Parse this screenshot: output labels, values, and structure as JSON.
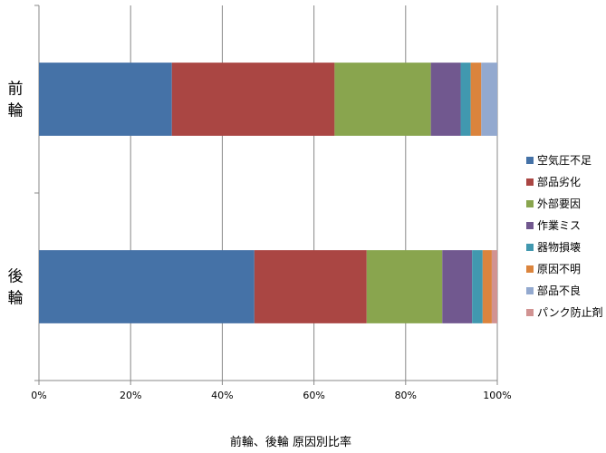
{
  "chart_data": {
    "type": "bar",
    "orientation": "horizontal",
    "stacked": "percent",
    "title": "前輪、後輪 原因別比率",
    "categories": [
      "前輪",
      "後輪"
    ],
    "xlim": [
      0,
      100
    ],
    "xticks": [
      "0%",
      "20%",
      "40%",
      "60%",
      "80%",
      "100%"
    ],
    "grid": true,
    "legend_position": "right",
    "series": [
      {
        "name": "空気圧不足",
        "color": "#4572A7",
        "values": [
          29,
          47
        ]
      },
      {
        "name": "部品劣化",
        "color": "#AA4643",
        "values": [
          35.5,
          24.5
        ]
      },
      {
        "name": "外部要因",
        "color": "#89A54E",
        "values": [
          21,
          16.5
        ]
      },
      {
        "name": "作業ミス",
        "color": "#71588F",
        "values": [
          6.5,
          6.5
        ]
      },
      {
        "name": "器物損壊",
        "color": "#4198AF",
        "values": [
          2.2,
          2.3
        ]
      },
      {
        "name": "原因不明",
        "color": "#DB843D",
        "values": [
          2.3,
          2
        ]
      },
      {
        "name": "部品不良",
        "color": "#93A9CF",
        "values": [
          3.5,
          0
        ]
      },
      {
        "name": "パンク防止剤",
        "color": "#D19392",
        "values": [
          0,
          1.2
        ]
      }
    ]
  }
}
